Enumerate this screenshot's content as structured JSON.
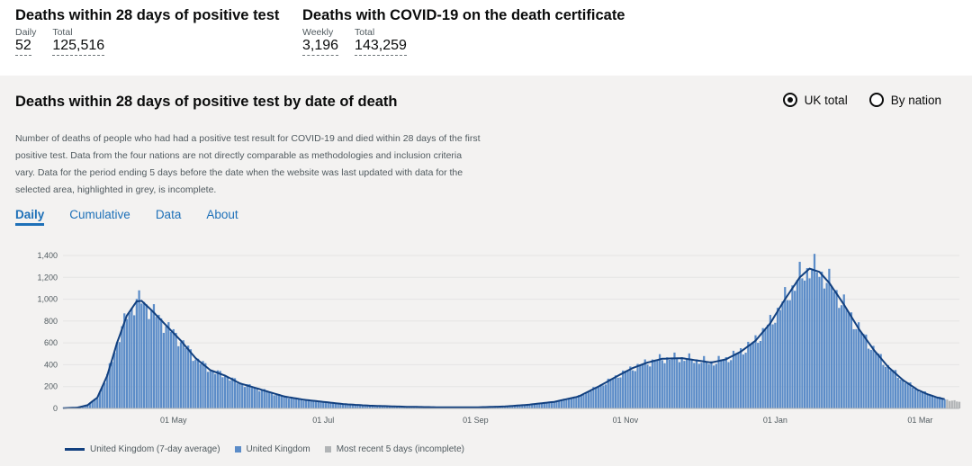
{
  "headline": {
    "left": {
      "title": "Deaths within 28 days of positive test",
      "daily_label": "Daily",
      "daily_value": "52",
      "total_label": "Total",
      "total_value": "125,516"
    },
    "right": {
      "title": "Deaths with COVID-19 on the death certificate",
      "weekly_label": "Weekly",
      "weekly_value": "3,196",
      "total_label": "Total",
      "total_value": "143,259"
    }
  },
  "card": {
    "title": "Deaths within 28 days of positive test by date of death",
    "radio_uk": "UK total",
    "radio_nation": "By nation",
    "description": "Number of deaths of people who had had a positive test result for COVID-19 and died within 28 days of the first positive test. Data from the four nations are not directly comparable as methodologies and inclusion criteria vary. Data for the period ending 5 days before the date when the website was last updated with data for the selected area, highlighted in grey, is incomplete.",
    "tabs": [
      "Daily",
      "Cumulative",
      "Data",
      "About"
    ]
  },
  "colors": {
    "bar": "#5b8cc8",
    "line": "#12407f",
    "incomplete": "#b1b4b6",
    "accent": "#1d70b8"
  },
  "chart_data": {
    "type": "bar",
    "title": "Deaths within 28 days of positive test by date of death",
    "x_start_day": 0,
    "x_end_day": 365,
    "x_ticks": [
      {
        "day": 45,
        "label": "01 May"
      },
      {
        "day": 106,
        "label": "01 Jul"
      },
      {
        "day": 168,
        "label": "01 Sep"
      },
      {
        "day": 229,
        "label": "01 Nov"
      },
      {
        "day": 290,
        "label": "01 Jan"
      },
      {
        "day": 349,
        "label": "01 Mar"
      }
    ],
    "ylim": [
      0,
      1400
    ],
    "y_ticks": [
      0,
      200,
      400,
      600,
      800,
      1000,
      1200,
      1400
    ],
    "series": [
      {
        "name": "United Kingdom (7-day average)",
        "kind": "line"
      },
      {
        "name": "United Kingdom",
        "kind": "bar"
      },
      {
        "name": "Most recent 5 days (incomplete)",
        "kind": "bar-incomplete"
      }
    ],
    "profile_points": [
      [
        0,
        2
      ],
      [
        6,
        8
      ],
      [
        10,
        30
      ],
      [
        14,
        100
      ],
      [
        18,
        300
      ],
      [
        22,
        600
      ],
      [
        26,
        850
      ],
      [
        30,
        980
      ],
      [
        32,
        985
      ],
      [
        36,
        900
      ],
      [
        42,
        760
      ],
      [
        48,
        620
      ],
      [
        54,
        460
      ],
      [
        60,
        350
      ],
      [
        66,
        300
      ],
      [
        72,
        230
      ],
      [
        78,
        190
      ],
      [
        84,
        150
      ],
      [
        90,
        110
      ],
      [
        98,
        80
      ],
      [
        106,
        60
      ],
      [
        114,
        40
      ],
      [
        125,
        25
      ],
      [
        140,
        15
      ],
      [
        155,
        10
      ],
      [
        168,
        10
      ],
      [
        180,
        18
      ],
      [
        190,
        35
      ],
      [
        200,
        60
      ],
      [
        210,
        110
      ],
      [
        218,
        200
      ],
      [
        226,
        300
      ],
      [
        232,
        370
      ],
      [
        238,
        420
      ],
      [
        244,
        455
      ],
      [
        252,
        460
      ],
      [
        258,
        440
      ],
      [
        264,
        420
      ],
      [
        270,
        450
      ],
      [
        276,
        520
      ],
      [
        282,
        620
      ],
      [
        288,
        780
      ],
      [
        294,
        1000
      ],
      [
        300,
        1200
      ],
      [
        304,
        1280
      ],
      [
        308,
        1250
      ],
      [
        312,
        1150
      ],
      [
        318,
        950
      ],
      [
        324,
        730
      ],
      [
        330,
        540
      ],
      [
        336,
        380
      ],
      [
        342,
        260
      ],
      [
        348,
        170
      ],
      [
        352,
        130
      ],
      [
        356,
        100
      ],
      [
        360,
        80
      ],
      [
        365,
        60
      ]
    ],
    "incomplete_from_day": 360
  }
}
